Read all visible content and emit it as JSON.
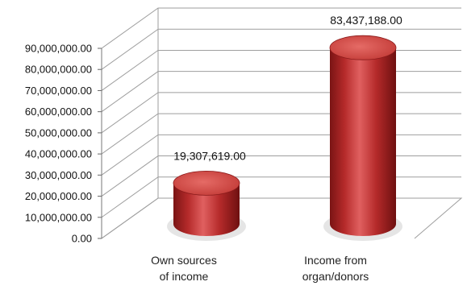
{
  "chart_data": {
    "type": "bar",
    "style": "3d-cylinder",
    "title": "",
    "xlabel": "",
    "ylabel": "",
    "categories": [
      "Own sources of income",
      "Income from organ/donors"
    ],
    "category_lines": [
      [
        "Own sources",
        "of income"
      ],
      [
        "Income from",
        "organ/donors"
      ]
    ],
    "values": [
      19307619,
      83437188
    ],
    "data_labels": [
      "19,307,619.00",
      "83,437,188.00"
    ],
    "ylim": [
      0,
      90000000
    ],
    "yticks": [
      0,
      10000000,
      20000000,
      30000000,
      40000000,
      50000000,
      60000000,
      70000000,
      80000000,
      90000000
    ],
    "ytick_labels": [
      "0.00",
      "10,000,000.00",
      "20,000,000.00",
      "30,000,000.00",
      "40,000,000.00",
      "50,000,000.00",
      "60,000,000.00",
      "70,000,000.00",
      "80,000,000.00",
      "90,000,000.00"
    ],
    "grid": true,
    "legend": "none",
    "colors": {
      "bar": "#c0392b",
      "bar_dark": "#7a1414",
      "bar_light": "#e57373",
      "top": "#d9534f",
      "grid": "#9e9e9e"
    }
  }
}
